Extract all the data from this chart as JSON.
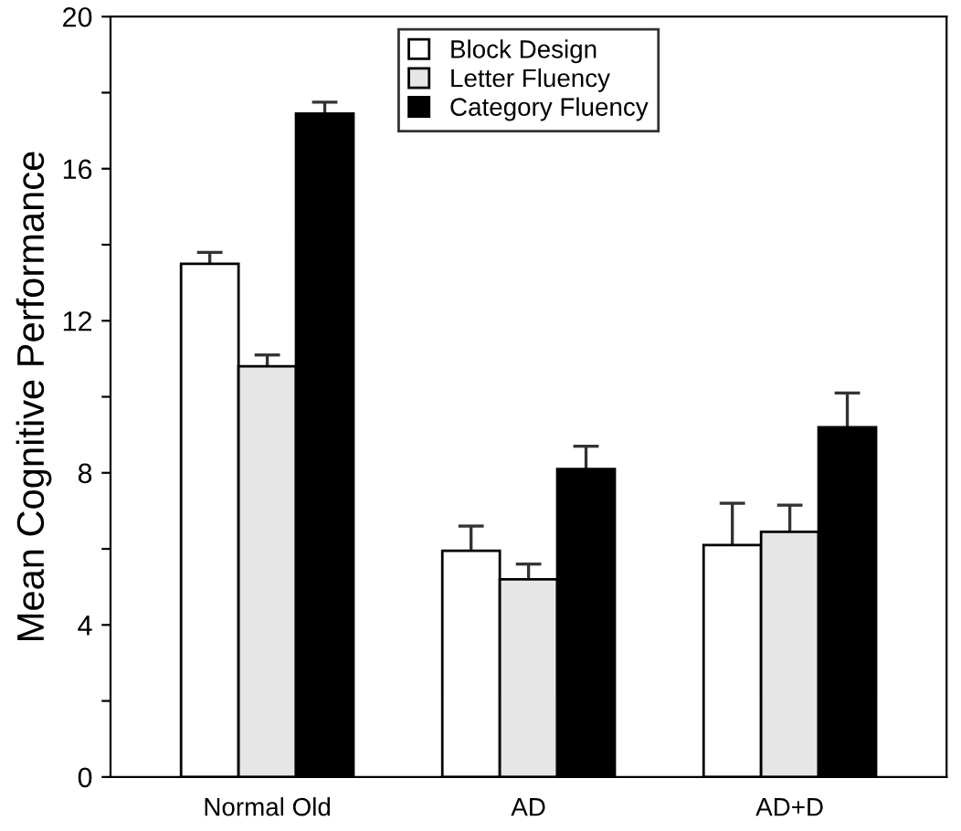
{
  "chart_data": {
    "type": "bar",
    "ylabel": "Mean Cognitive Performance",
    "categories": [
      "Normal Old",
      "AD",
      "AD+D"
    ],
    "series": [
      {
        "name": "Block Design",
        "color": "#ffffff",
        "values": [
          13.5,
          5.95,
          6.1
        ],
        "errors": [
          0.3,
          0.65,
          1.1
        ]
      },
      {
        "name": "Letter Fluency",
        "color": "#e6e6e6",
        "values": [
          10.8,
          5.2,
          6.45
        ],
        "errors": [
          0.3,
          0.4,
          0.7
        ]
      },
      {
        "name": "Category Fluency",
        "color": "#000000",
        "values": [
          17.45,
          8.1,
          9.2
        ],
        "errors": [
          0.3,
          0.6,
          0.9
        ]
      }
    ],
    "ylim": [
      0,
      20
    ],
    "yticks": [
      0,
      {
        "value": 2,
        "label": null
      },
      4,
      {
        "value": 6,
        "label": null
      },
      8,
      {
        "value": 10,
        "label": null
      },
      12,
      {
        "value": 14,
        "label": null
      },
      16,
      {
        "value": 18,
        "label": null
      },
      20
    ],
    "grid": false,
    "legend": "top"
  }
}
